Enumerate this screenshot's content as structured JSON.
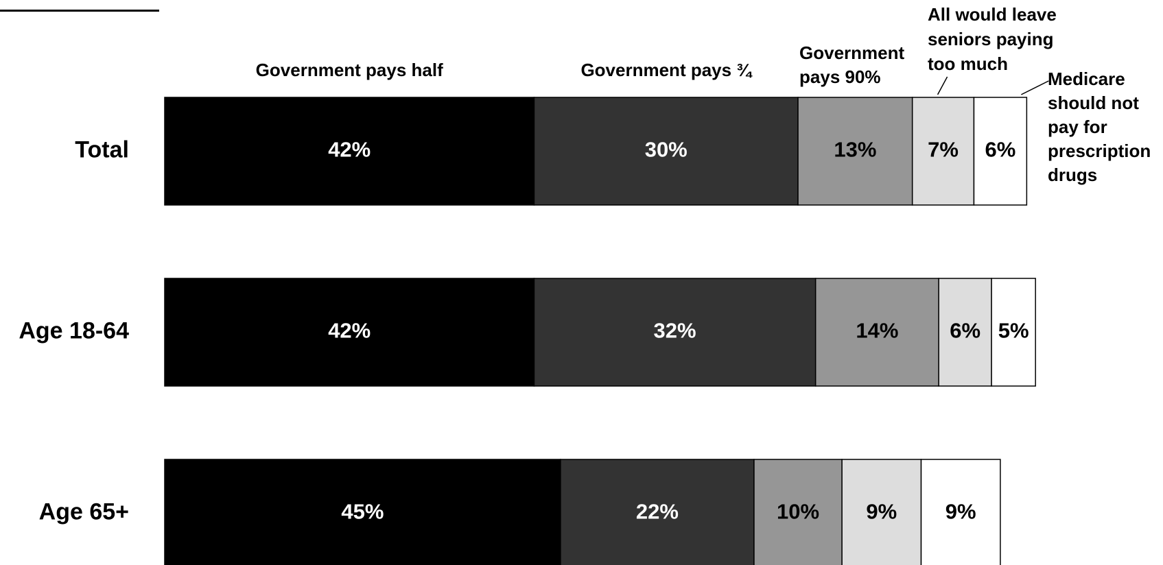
{
  "chart_data": {
    "type": "bar",
    "orientation": "horizontal",
    "stacked": true,
    "categories": [
      "Total",
      "Age 18-64",
      "Age 65+"
    ],
    "series": [
      {
        "name": "Government pays half",
        "values": [
          42,
          42,
          45
        ],
        "color": "#000000"
      },
      {
        "name": "Government pays ¾",
        "values": [
          30,
          32,
          22
        ],
        "color": "#333333"
      },
      {
        "name": "Government pays 90%",
        "values": [
          13,
          14,
          10
        ],
        "color": "#969696"
      },
      {
        "name": "All would leave seniors paying too much",
        "values": [
          7,
          6,
          9
        ],
        "color": "#dddddd"
      },
      {
        "name": "Medicare should not pay for prescription drugs",
        "values": [
          6,
          5,
          9
        ],
        "color": "#ffffff"
      }
    ],
    "value_suffix": "%",
    "legend_position": "top, labels above segments",
    "grid": false
  }
}
